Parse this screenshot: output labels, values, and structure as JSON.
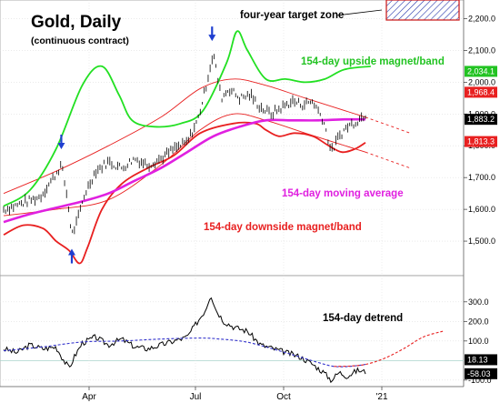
{
  "chart_data": {
    "type": "line",
    "title": "Gold, Daily",
    "subtitle": "(continuous contract)",
    "annotations": {
      "target_zone": "four-year target zone",
      "upside_band": "154-day upside magnet/band",
      "moving_average": "154-day moving average",
      "downside_band": "154-day downside magnet/band",
      "detrend": "154-day detrend"
    },
    "x_ticks": [
      "Apr",
      "Jul",
      "Oct",
      "'21"
    ],
    "price_panel": {
      "ylim": [
        1400,
        2250
      ],
      "y_ticks": [
        {
          "value": 1500,
          "label": "1,500.0"
        },
        {
          "value": 1600,
          "label": "1,600.0"
        },
        {
          "value": 1700,
          "label": "1,700.0"
        },
        {
          "value": 1800,
          "label": "1,800.0"
        },
        {
          "value": 1900,
          "label": "1,900.0"
        },
        {
          "value": 2000,
          "label": "2,000.0"
        },
        {
          "value": 2100,
          "label": "2,100.0"
        },
        {
          "value": 2200,
          "label": "2,200.0"
        }
      ],
      "last_value_tags": [
        {
          "value": 2034.1,
          "label": "2,034.1",
          "color": "#22c322"
        },
        {
          "value": 1968.4,
          "label": "1,968.4",
          "color": "#e82020"
        },
        {
          "value": 1883.2,
          "label": "1,883.2",
          "color": "#000000"
        },
        {
          "value": 1813.3,
          "label": "1,813.3",
          "color": "#e82020"
        }
      ],
      "target_zone_range": [
        2210,
        2260
      ],
      "series": [
        {
          "key": "price",
          "color": "#000000",
          "points": [
            [
              0,
              1600
            ],
            [
              8,
              1610
            ],
            [
              18,
              1625
            ],
            [
              28,
              1640
            ],
            [
              38,
              1700
            ],
            [
              44,
              1740
            ],
            [
              48,
              1650
            ],
            [
              52,
              1520
            ],
            [
              56,
              1560
            ],
            [
              62,
              1650
            ],
            [
              70,
              1720
            ],
            [
              80,
              1750
            ],
            [
              90,
              1730
            ],
            [
              100,
              1760
            ],
            [
              110,
              1740
            ],
            [
              120,
              1760
            ],
            [
              130,
              1790
            ],
            [
              140,
              1810
            ],
            [
              148,
              1880
            ],
            [
              154,
              1980
            ],
            [
              158,
              2060
            ],
            [
              160,
              2090
            ],
            [
              163,
              2020
            ],
            [
              166,
              1950
            ],
            [
              172,
              1980
            ],
            [
              180,
              1950
            ],
            [
              188,
              1960
            ],
            [
              196,
              1920
            ],
            [
              204,
              1900
            ],
            [
              212,
              1920
            ],
            [
              220,
              1940
            ],
            [
              228,
              1930
            ],
            [
              236,
              1940
            ],
            [
              244,
              1880
            ],
            [
              250,
              1780
            ],
            [
              256,
              1830
            ],
            [
              262,
              1860
            ],
            [
              270,
              1880
            ],
            [
              276,
              1900
            ]
          ]
        },
        {
          "key": "upper_envelope",
          "color": "#e82020",
          "dashed_from": 276,
          "points": [
            [
              0,
              1650
            ],
            [
              40,
              1720
            ],
            [
              80,
              1800
            ],
            [
              120,
              1890
            ],
            [
              150,
              1980
            ],
            [
              175,
              2010
            ],
            [
              200,
              1990
            ],
            [
              230,
              1950
            ],
            [
              276,
              1890
            ],
            [
              310,
              1840
            ]
          ]
        },
        {
          "key": "lower_envelope",
          "color": "#e82020",
          "dashed_from": 276,
          "points": [
            [
              0,
              1580
            ],
            [
              40,
              1600
            ],
            [
              80,
              1630
            ],
            [
              120,
              1740
            ],
            [
              150,
              1850
            ],
            [
              175,
              1900
            ],
            [
              200,
              1880
            ],
            [
              230,
              1840
            ],
            [
              276,
              1780
            ],
            [
              310,
              1730
            ]
          ]
        },
        {
          "key": "upside_band",
          "color": "#22e022",
          "points": [
            [
              0,
              1610
            ],
            [
              20,
              1660
            ],
            [
              40,
              1790
            ],
            [
              60,
              1990
            ],
            [
              75,
              2050
            ],
            [
              88,
              1960
            ],
            [
              98,
              1880
            ],
            [
              115,
              1860
            ],
            [
              135,
              1870
            ],
            [
              152,
              1910
            ],
            [
              170,
              2060
            ],
            [
              178,
              2160
            ],
            [
              186,
              2100
            ],
            [
              200,
              2010
            ],
            [
              215,
              2010
            ],
            [
              230,
              2000
            ],
            [
              245,
              2010
            ],
            [
              260,
              2040
            ],
            [
              280,
              2050
            ]
          ]
        },
        {
          "key": "downside_band",
          "color": "#e82020",
          "points": [
            [
              0,
              1520
            ],
            [
              15,
              1550
            ],
            [
              30,
              1540
            ],
            [
              40,
              1500
            ],
            [
              50,
              1470
            ],
            [
              58,
              1430
            ],
            [
              64,
              1480
            ],
            [
              75,
              1600
            ],
            [
              90,
              1680
            ],
            [
              110,
              1730
            ],
            [
              130,
              1770
            ],
            [
              150,
              1840
            ],
            [
              175,
              1870
            ],
            [
              192,
              1870
            ],
            [
              200,
              1850
            ],
            [
              210,
              1830
            ],
            [
              222,
              1840
            ],
            [
              236,
              1830
            ],
            [
              248,
              1800
            ],
            [
              258,
              1780
            ],
            [
              268,
              1790
            ],
            [
              276,
              1810
            ]
          ]
        },
        {
          "key": "moving_average",
          "color": "#e020e0",
          "points": [
            [
              0,
              1560
            ],
            [
              20,
              1585
            ],
            [
              40,
              1605
            ],
            [
              60,
              1625
            ],
            [
              80,
              1650
            ],
            [
              100,
              1690
            ],
            [
              120,
              1730
            ],
            [
              140,
              1780
            ],
            [
              160,
              1830
            ],
            [
              180,
              1860
            ],
            [
              200,
              1880
            ],
            [
              220,
              1880
            ],
            [
              240,
              1880
            ],
            [
              260,
              1883
            ],
            [
              276,
              1883
            ]
          ]
        }
      ],
      "arrows": [
        {
          "x": 44,
          "value": 1795,
          "direction": "down"
        },
        {
          "x": 52,
          "value": 1470,
          "direction": "up"
        },
        {
          "x": 159,
          "value": 2135,
          "direction": "down"
        }
      ]
    },
    "detrend_panel": {
      "ylim": [
        -110,
        420
      ],
      "y_ticks": [
        {
          "value": 300,
          "label": "300.0"
        },
        {
          "value": 200,
          "label": "200.0"
        },
        {
          "value": 100,
          "label": "100.0"
        },
        {
          "value": -100,
          "label": "-100.0"
        }
      ],
      "last_value_tags": [
        {
          "value": 18.13,
          "label": "18.13",
          "color": "#000000"
        },
        {
          "value": -58.03,
          "label": "-58.03",
          "color": "#000000"
        }
      ],
      "series": [
        {
          "key": "detrend",
          "color": "#000000",
          "points": [
            [
              0,
              60
            ],
            [
              10,
              40
            ],
            [
              20,
              80
            ],
            [
              30,
              60
            ],
            [
              40,
              70
            ],
            [
              46,
              0
            ],
            [
              50,
              -40
            ],
            [
              54,
              20
            ],
            [
              60,
              90
            ],
            [
              70,
              120
            ],
            [
              80,
              80
            ],
            [
              90,
              110
            ],
            [
              100,
              70
            ],
            [
              110,
              60
            ],
            [
              120,
              80
            ],
            [
              130,
              100
            ],
            [
              140,
              120
            ],
            [
              148,
              200
            ],
            [
              154,
              260
            ],
            [
              158,
              340
            ],
            [
              162,
              260
            ],
            [
              168,
              200
            ],
            [
              176,
              170
            ],
            [
              186,
              150
            ],
            [
              196,
              80
            ],
            [
              206,
              60
            ],
            [
              216,
              40
            ],
            [
              226,
              20
            ],
            [
              236,
              -20
            ],
            [
              244,
              -60
            ],
            [
              250,
              -100
            ],
            [
              256,
              -60
            ],
            [
              262,
              -80
            ],
            [
              270,
              -50
            ],
            [
              276,
              -58
            ]
          ]
        },
        {
          "key": "detrend_cycle",
          "color": "#3333cc",
          "dashed": true,
          "points": [
            [
              0,
              50
            ],
            [
              30,
              70
            ],
            [
              60,
              95
            ],
            [
              90,
              100
            ],
            [
              120,
              110
            ],
            [
              150,
              115
            ],
            [
              165,
              110
            ],
            [
              185,
              95
            ],
            [
              205,
              60
            ],
            [
              225,
              20
            ],
            [
              240,
              -10
            ],
            [
              252,
              -30
            ],
            [
              264,
              -30
            ],
            [
              276,
              -20
            ]
          ]
        },
        {
          "key": "detrend_projection",
          "color": "#e82020",
          "dashed": true,
          "points": [
            [
              252,
              -30
            ],
            [
              264,
              -28
            ],
            [
              276,
              -20
            ],
            [
              290,
              10
            ],
            [
              305,
              60
            ],
            [
              320,
              120
            ],
            [
              335,
              150
            ]
          ]
        }
      ]
    }
  }
}
